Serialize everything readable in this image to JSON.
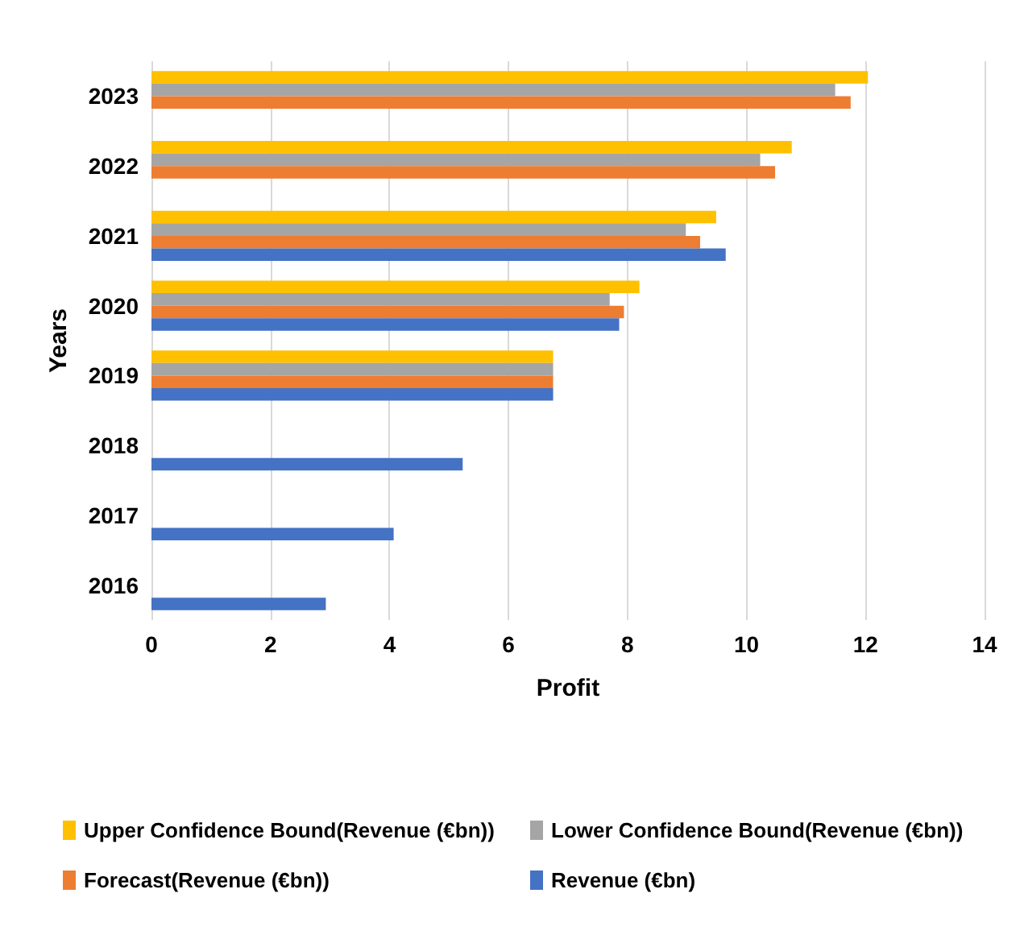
{
  "chart_data": {
    "type": "bar",
    "orientation": "horizontal",
    "xlabel": "Profit",
    "ylabel": "Years",
    "categories": [
      "2023",
      "2022",
      "2021",
      "2020",
      "2019",
      "2018",
      "2017",
      "2016"
    ],
    "series": [
      {
        "name": "Upper Confidence Bound(Revenue (€bn))",
        "color": "#ffc000",
        "values": [
          12.04,
          10.76,
          9.49,
          8.2,
          6.75,
          null,
          null,
          null
        ]
      },
      {
        "name": "Lower Confidence Bound(Revenue (€bn))",
        "color": "#a5a5a5",
        "values": [
          11.49,
          10.23,
          8.98,
          7.7,
          6.75,
          null,
          null,
          null
        ]
      },
      {
        "name": "Forecast(Revenue (€bn))",
        "color": "#ed7d31",
        "values": [
          11.75,
          10.48,
          9.22,
          7.94,
          6.75,
          null,
          null,
          null
        ]
      },
      {
        "name": "Revenue (€bn)",
        "color": "#4472c4",
        "values": [
          null,
          null,
          9.65,
          7.86,
          6.75,
          5.23,
          4.07,
          2.93
        ]
      }
    ],
    "xlim": [
      0,
      14
    ],
    "xticks": [
      0,
      2,
      4,
      6,
      8,
      10,
      12,
      14
    ],
    "grid": "x",
    "legend": "bottom"
  }
}
